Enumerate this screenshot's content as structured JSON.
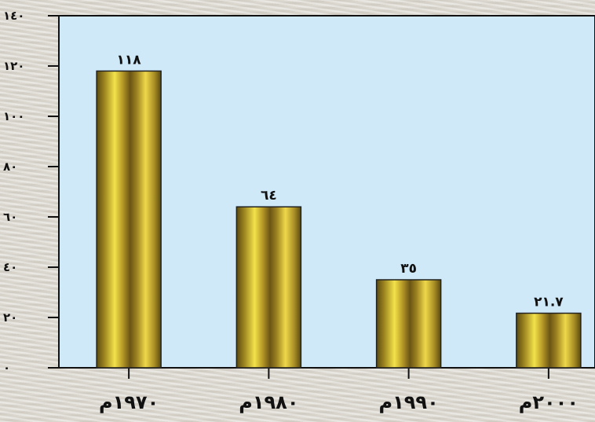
{
  "chart_data": {
    "type": "bar",
    "categories": [
      "١٩٧٠م",
      "١٩٨٠م",
      "١٩٩٠م",
      "٢٠٠٠م"
    ],
    "values": [
      118,
      64,
      35,
      21.7
    ],
    "value_labels": [
      "١١٨",
      "٦٤",
      "٣٥",
      "٢١.٧"
    ],
    "y_ticks": [
      0,
      20,
      40,
      60,
      80,
      100,
      120,
      140
    ],
    "y_tick_labels": [
      "٠",
      "٢٠",
      "٤٠",
      "٦٠",
      "٨٠",
      "١٠٠",
      "١٢٠",
      "١٤٠"
    ],
    "ylim": [
      0,
      140
    ],
    "title": "",
    "xlabel": "",
    "ylabel": "",
    "grid": false,
    "plot_background": "#cfe9f9",
    "bar_color": "#c9b233"
  }
}
